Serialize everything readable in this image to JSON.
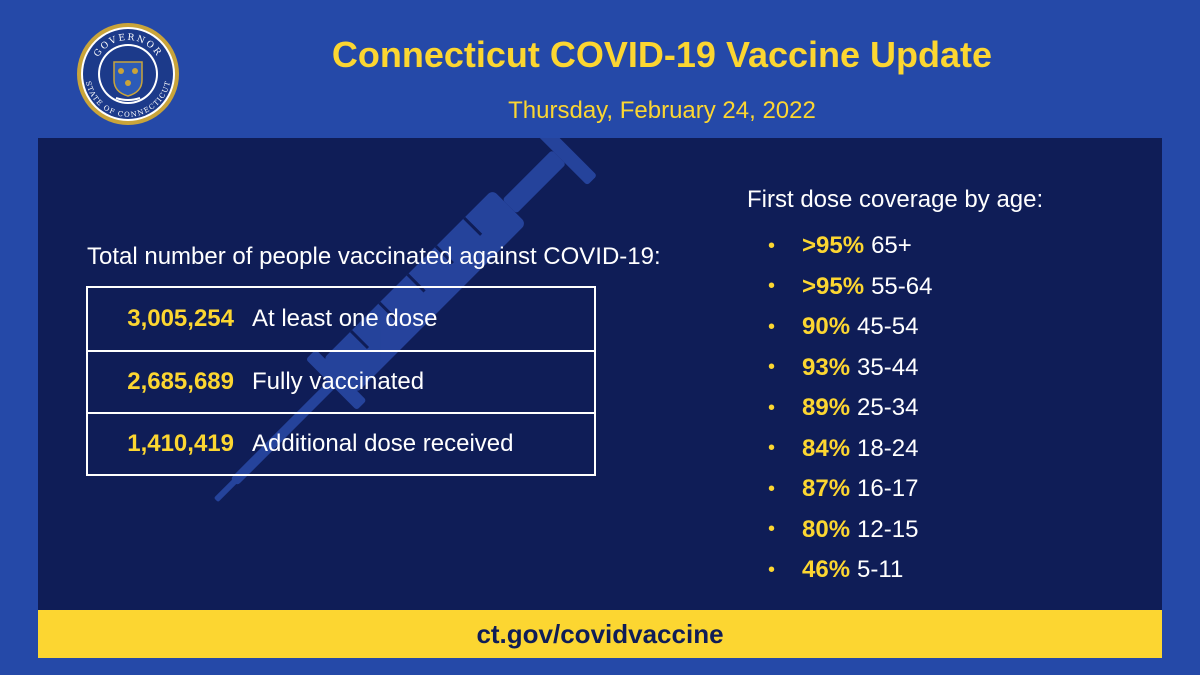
{
  "header": {
    "title": "Connecticut COVID-19 Vaccine Update",
    "date": "Thursday, February 24, 2022",
    "seal": {
      "top_text": "GOVERNOR",
      "bottom_text": "STATE OF CONNECTICUT",
      "icon": "connecticut-state-seal-icon"
    }
  },
  "totals": {
    "heading": "Total number of people vaccinated against COVID-19:",
    "rows": [
      {
        "value": "3,005,254",
        "label": "At least one dose"
      },
      {
        "value": "2,685,689",
        "label": "Fully vaccinated"
      },
      {
        "value": "1,410,419",
        "label": "Additional dose received"
      }
    ]
  },
  "coverage": {
    "heading": "First dose coverage by age:",
    "bullet": "•",
    "items": [
      {
        "pct": ">95%",
        "age": "65+"
      },
      {
        "pct": ">95%",
        "age": "55-64"
      },
      {
        "pct": "90%",
        "age": "45-54"
      },
      {
        "pct": "93%",
        "age": "35-44"
      },
      {
        "pct": "89%",
        "age": "25-34"
      },
      {
        "pct": "84%",
        "age": "18-24"
      },
      {
        "pct": "87%",
        "age": "16-17"
      },
      {
        "pct": "80%",
        "age": "12-15"
      },
      {
        "pct": "46%",
        "age": "5-11"
      }
    ]
  },
  "footer": {
    "link": "ct.gov/covidvaccine"
  },
  "decor": {
    "background_icon": "syringe-icon"
  },
  "colors": {
    "background": "#2549a8",
    "panel": "#0f1d57",
    "accent_yellow": "#fcd631",
    "text_white": "#ffffff"
  }
}
